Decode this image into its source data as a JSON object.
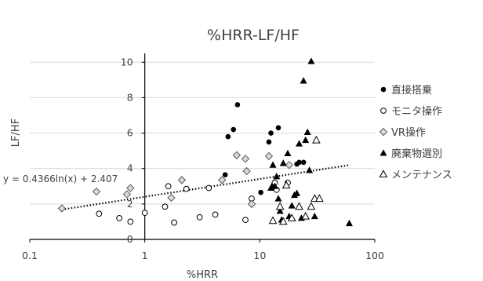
{
  "chart_data": {
    "type": "scatter",
    "title": "%HRR-LF/HF",
    "xlabel": "%HRR",
    "ylabel": "LF/HF",
    "x_scale": "log",
    "xlim": [
      0.1,
      100
    ],
    "ylim": [
      0,
      10.5
    ],
    "x_ticks": [
      "0.1",
      "1",
      "10",
      "100"
    ],
    "y_ticks": [
      "0",
      "2",
      "4",
      "6",
      "8",
      "10"
    ],
    "grid": "horizontal",
    "legend_position": "right",
    "trendline": {
      "label": "y = 0.4366ln(x) + 2.407",
      "a": 0.4366,
      "b": 2.407,
      "x_range": [
        0.19,
        60
      ]
    },
    "series": [
      {
        "name": "直接搭乗",
        "marker": "circle-filled",
        "points": [
          [
            5.0,
            3.65
          ],
          [
            5.3,
            5.8
          ],
          [
            5.9,
            6.2
          ],
          [
            6.4,
            7.6
          ],
          [
            10.2,
            2.65
          ],
          [
            12.0,
            5.5
          ],
          [
            12.5,
            6.0
          ],
          [
            14.5,
            6.3
          ],
          [
            13.2,
            3.1
          ],
          [
            21.0,
            4.25
          ],
          [
            22.0,
            4.35
          ],
          [
            24.0,
            4.35
          ]
        ]
      },
      {
        "name": "モニタ操作",
        "marker": "circle-open",
        "points": [
          [
            0.4,
            1.45
          ],
          [
            0.6,
            1.2
          ],
          [
            0.75,
            1.0
          ],
          [
            1.0,
            1.5
          ],
          [
            1.5,
            1.85
          ],
          [
            1.6,
            3.0
          ],
          [
            1.8,
            0.95
          ],
          [
            2.3,
            2.85
          ],
          [
            3.0,
            1.25
          ],
          [
            3.6,
            2.9
          ],
          [
            4.1,
            1.4
          ],
          [
            7.5,
            1.1
          ],
          [
            8.5,
            2.3
          ],
          [
            13.5,
            3.2
          ],
          [
            14.0,
            2.8
          ],
          [
            17.5,
            3.2
          ]
        ]
      },
      {
        "name": "VR操作",
        "marker": "diamond-open",
        "points": [
          [
            0.19,
            1.75
          ],
          [
            0.38,
            2.7
          ],
          [
            0.7,
            2.55
          ],
          [
            0.75,
            2.9
          ],
          [
            1.7,
            2.35
          ],
          [
            2.1,
            3.35
          ],
          [
            4.7,
            3.35
          ],
          [
            6.3,
            4.75
          ],
          [
            7.5,
            4.55
          ],
          [
            7.7,
            3.85
          ],
          [
            8.5,
            2.0
          ],
          [
            12.0,
            4.7
          ],
          [
            18.0,
            4.2
          ]
        ]
      },
      {
        "name": "廃棄物選別",
        "marker": "triangle-filled",
        "points": [
          [
            12.5,
            2.9
          ],
          [
            13.0,
            4.2
          ],
          [
            13.5,
            3.0
          ],
          [
            14.0,
            3.55
          ],
          [
            14.5,
            2.3
          ],
          [
            15.0,
            1.6
          ],
          [
            15.5,
            1.1
          ],
          [
            16.0,
            4.3
          ],
          [
            17.5,
            4.85
          ],
          [
            18.0,
            1.3
          ],
          [
            19.0,
            1.9
          ],
          [
            20.0,
            2.5
          ],
          [
            21.0,
            2.6
          ],
          [
            22.0,
            5.4
          ],
          [
            23.0,
            1.2
          ],
          [
            24.0,
            8.95
          ],
          [
            25.0,
            5.6
          ],
          [
            26.0,
            6.05
          ],
          [
            27.0,
            3.9
          ],
          [
            28.0,
            10.05
          ],
          [
            30.0,
            1.3
          ],
          [
            60.0,
            0.9
          ]
        ]
      },
      {
        "name": "メンテナンス",
        "marker": "triangle-open",
        "points": [
          [
            13.0,
            1.05
          ],
          [
            15.0,
            1.85
          ],
          [
            16.0,
            1.0
          ],
          [
            17.0,
            3.05
          ],
          [
            19.0,
            1.2
          ],
          [
            22.0,
            1.85
          ],
          [
            25.0,
            1.3
          ],
          [
            28.0,
            1.85
          ],
          [
            30.0,
            2.3
          ],
          [
            31.0,
            5.6
          ],
          [
            33.0,
            2.3
          ]
        ]
      }
    ]
  }
}
